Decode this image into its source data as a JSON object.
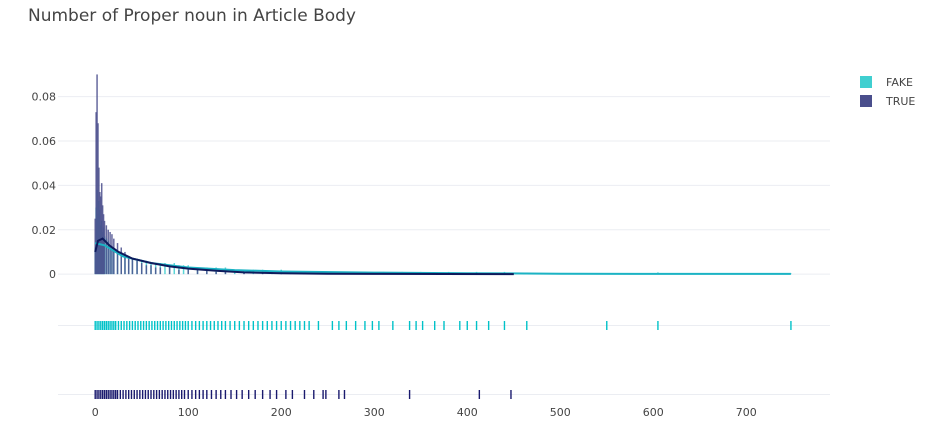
{
  "chart_data": {
    "type": "histogram",
    "title": "Number of Proper noun in Article Body",
    "xlabel": "",
    "ylabel": "",
    "xlim": [
      -40,
      790
    ],
    "ylim": [
      -0.004,
      0.092
    ],
    "x_ticks": [
      0,
      100,
      200,
      300,
      400,
      500,
      600,
      700
    ],
    "y_ticks": [
      0,
      0.02,
      0.04,
      0.06,
      0.08
    ],
    "y_tick_labels": [
      "0",
      "0.02",
      "0.04",
      "0.06",
      "0.08"
    ],
    "grid": true,
    "legend_position": "top-right",
    "series": [
      {
        "name": "FAKE",
        "color": "#40cfd0",
        "bins": [
          [
            0,
            0.012
          ],
          [
            1,
            0.03
          ],
          [
            2,
            0.038
          ],
          [
            3,
            0.027
          ],
          [
            4,
            0.033
          ],
          [
            5,
            0.029
          ],
          [
            6,
            0.022
          ],
          [
            7,
            0.024
          ],
          [
            8,
            0.019
          ],
          [
            9,
            0.021
          ],
          [
            10,
            0.017
          ],
          [
            12,
            0.016
          ],
          [
            14,
            0.015
          ],
          [
            16,
            0.013
          ],
          [
            18,
            0.012
          ],
          [
            20,
            0.011
          ],
          [
            24,
            0.01
          ],
          [
            28,
            0.009
          ],
          [
            32,
            0.008
          ],
          [
            36,
            0.008
          ],
          [
            40,
            0.007
          ],
          [
            45,
            0.007
          ],
          [
            50,
            0.006
          ],
          [
            55,
            0.006
          ],
          [
            60,
            0.005
          ],
          [
            65,
            0.005
          ],
          [
            70,
            0.005
          ],
          [
            75,
            0.005
          ],
          [
            80,
            0.004
          ],
          [
            85,
            0.005
          ],
          [
            90,
            0.004
          ],
          [
            95,
            0.004
          ],
          [
            100,
            0.004
          ],
          [
            110,
            0.003
          ],
          [
            120,
            0.003
          ],
          [
            130,
            0.003
          ],
          [
            140,
            0.003
          ],
          [
            150,
            0.002
          ],
          [
            160,
            0.002
          ],
          [
            170,
            0.002
          ],
          [
            180,
            0.002
          ],
          [
            190,
            0.001
          ],
          [
            200,
            0.002
          ],
          [
            210,
            0.001
          ],
          [
            220,
            0.001
          ],
          [
            230,
            0.001
          ],
          [
            240,
            0.001
          ],
          [
            250,
            0.001
          ],
          [
            270,
            0.001
          ],
          [
            290,
            0.001
          ],
          [
            310,
            0.001
          ],
          [
            330,
            0.001
          ],
          [
            350,
            0.001
          ],
          [
            380,
            0.001
          ],
          [
            410,
            0.001
          ],
          [
            440,
            0.001
          ],
          [
            470,
            0.0005
          ],
          [
            550,
            0.0005
          ],
          [
            605,
            0.0008
          ],
          [
            748,
            0.0003
          ]
        ],
        "kde": [
          [
            0,
            0.014
          ],
          [
            10,
            0.013
          ],
          [
            30,
            0.008
          ],
          [
            60,
            0.005
          ],
          [
            100,
            0.003
          ],
          [
            150,
            0.0018
          ],
          [
            200,
            0.0012
          ],
          [
            300,
            0.0007
          ],
          [
            400,
            0.0004
          ],
          [
            500,
            0.0002
          ],
          [
            600,
            0.0001
          ],
          [
            748,
            0.0001
          ]
        ],
        "rug": [
          0,
          2,
          4,
          6,
          8,
          10,
          12,
          14,
          16,
          18,
          20,
          22,
          25,
          28,
          31,
          34,
          37,
          40,
          43,
          46,
          49,
          52,
          55,
          58,
          61,
          64,
          67,
          70,
          73,
          76,
          79,
          82,
          85,
          88,
          91,
          94,
          97,
          100,
          104,
          108,
          112,
          116,
          120,
          124,
          128,
          132,
          136,
          140,
          145,
          150,
          155,
          160,
          165,
          170,
          175,
          180,
          185,
          190,
          195,
          200,
          205,
          210,
          215,
          220,
          225,
          230,
          240,
          255,
          262,
          270,
          280,
          290,
          298,
          305,
          320,
          338,
          345,
          352,
          365,
          375,
          392,
          400,
          410,
          423,
          440,
          464,
          550,
          605,
          748
        ]
      },
      {
        "name": "TRUE",
        "color": "#4a4e8c",
        "bins": [
          [
            0,
            0.025
          ],
          [
            1,
            0.073
          ],
          [
            2,
            0.09
          ],
          [
            3,
            0.068
          ],
          [
            4,
            0.048
          ],
          [
            5,
            0.037
          ],
          [
            6,
            0.035
          ],
          [
            7,
            0.041
          ],
          [
            8,
            0.031
          ],
          [
            9,
            0.027
          ],
          [
            10,
            0.024
          ],
          [
            12,
            0.022
          ],
          [
            14,
            0.02
          ],
          [
            16,
            0.019
          ],
          [
            18,
            0.018
          ],
          [
            20,
            0.016
          ],
          [
            24,
            0.014
          ],
          [
            28,
            0.012
          ],
          [
            32,
            0.01
          ],
          [
            36,
            0.008
          ],
          [
            40,
            0.007
          ],
          [
            45,
            0.006
          ],
          [
            50,
            0.005
          ],
          [
            55,
            0.004
          ],
          [
            60,
            0.004
          ],
          [
            65,
            0.003
          ],
          [
            70,
            0.003
          ],
          [
            80,
            0.003
          ],
          [
            90,
            0.002
          ],
          [
            100,
            0.002
          ],
          [
            110,
            0.002
          ],
          [
            120,
            0.002
          ],
          [
            130,
            0.001
          ],
          [
            140,
            0.001
          ],
          [
            160,
            0.001
          ],
          [
            180,
            0.001
          ],
          [
            200,
            0.0008
          ],
          [
            250,
            0.0005
          ],
          [
            300,
            0.0004
          ]
        ],
        "kde": [
          [
            0,
            0.01
          ],
          [
            3,
            0.015
          ],
          [
            8,
            0.016
          ],
          [
            15,
            0.013
          ],
          [
            25,
            0.01
          ],
          [
            40,
            0.007
          ],
          [
            60,
            0.005
          ],
          [
            80,
            0.0035
          ],
          [
            100,
            0.0025
          ],
          [
            130,
            0.0015
          ],
          [
            160,
            0.0008
          ],
          [
            200,
            0.0004
          ],
          [
            250,
            0.0002
          ],
          [
            300,
            0.0001
          ],
          [
            450,
            0
          ]
        ],
        "rug": [
          0,
          2,
          4,
          6,
          8,
          10,
          12,
          14,
          16,
          18,
          20,
          22,
          24,
          27,
          30,
          33,
          36,
          39,
          42,
          45,
          48,
          51,
          54,
          57,
          60,
          63,
          66,
          69,
          72,
          75,
          78,
          81,
          84,
          87,
          90,
          93,
          96,
          100,
          104,
          108,
          112,
          116,
          120,
          125,
          130,
          135,
          140,
          146,
          152,
          158,
          165,
          172,
          180,
          188,
          195,
          205,
          212,
          225,
          235,
          245,
          248,
          262,
          268,
          338,
          413,
          447
        ]
      }
    ]
  }
}
